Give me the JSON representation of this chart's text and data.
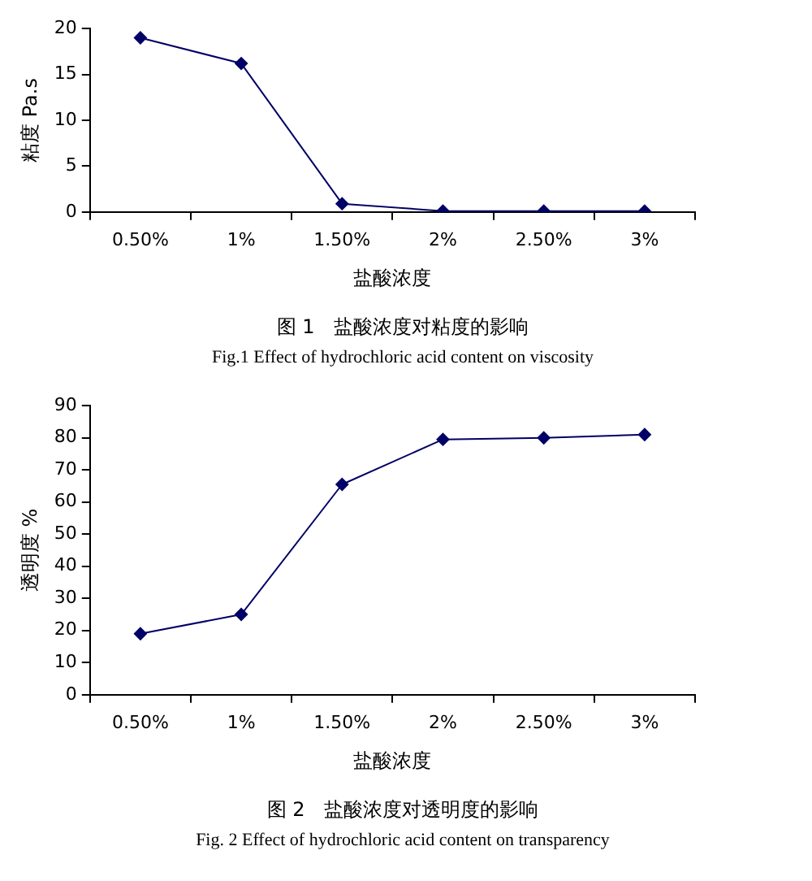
{
  "chart_data": [
    {
      "type": "line",
      "categories": [
        "0.50%",
        "1%",
        "1.50%",
        "2%",
        "2.50%",
        "3%"
      ],
      "xlabel": "盐酸浓度",
      "ylabel": "粘度 Pa.s",
      "series": [
        {
          "color": "#000066",
          "values": [
            19,
            16.2,
            0.9,
            0.1,
            0.1,
            0.1
          ]
        }
      ],
      "ylim": [
        0,
        20
      ],
      "yticks": [
        0,
        5,
        10,
        15,
        20
      ],
      "grid": false,
      "legend": false,
      "marker": "diamond",
      "line_style": "solid",
      "annotations": [
        "图 1　盐酸浓度对粘度的影响",
        "Fig.1 Effect of hydrochloric acid content on viscosity"
      ]
    },
    {
      "type": "line",
      "categories": [
        "0.50%",
        "1%",
        "1.50%",
        "2%",
        "2.50%",
        "3%"
      ],
      "xlabel": "盐酸浓度",
      "ylabel": "透明度 %",
      "series": [
        {
          "color": "#000066",
          "values": [
            19,
            25,
            65.5,
            79.5,
            80,
            81
          ]
        }
      ],
      "ylim": [
        0,
        90
      ],
      "yticks": [
        0,
        10,
        20,
        30,
        40,
        50,
        60,
        70,
        80,
        90
      ],
      "grid": false,
      "legend": false,
      "marker": "diamond",
      "line_style": "solid",
      "annotations": [
        "图 2　盐酸浓度对透明度的影响",
        "Fig. 2 Effect of hydrochloric acid content on transparency"
      ]
    }
  ]
}
